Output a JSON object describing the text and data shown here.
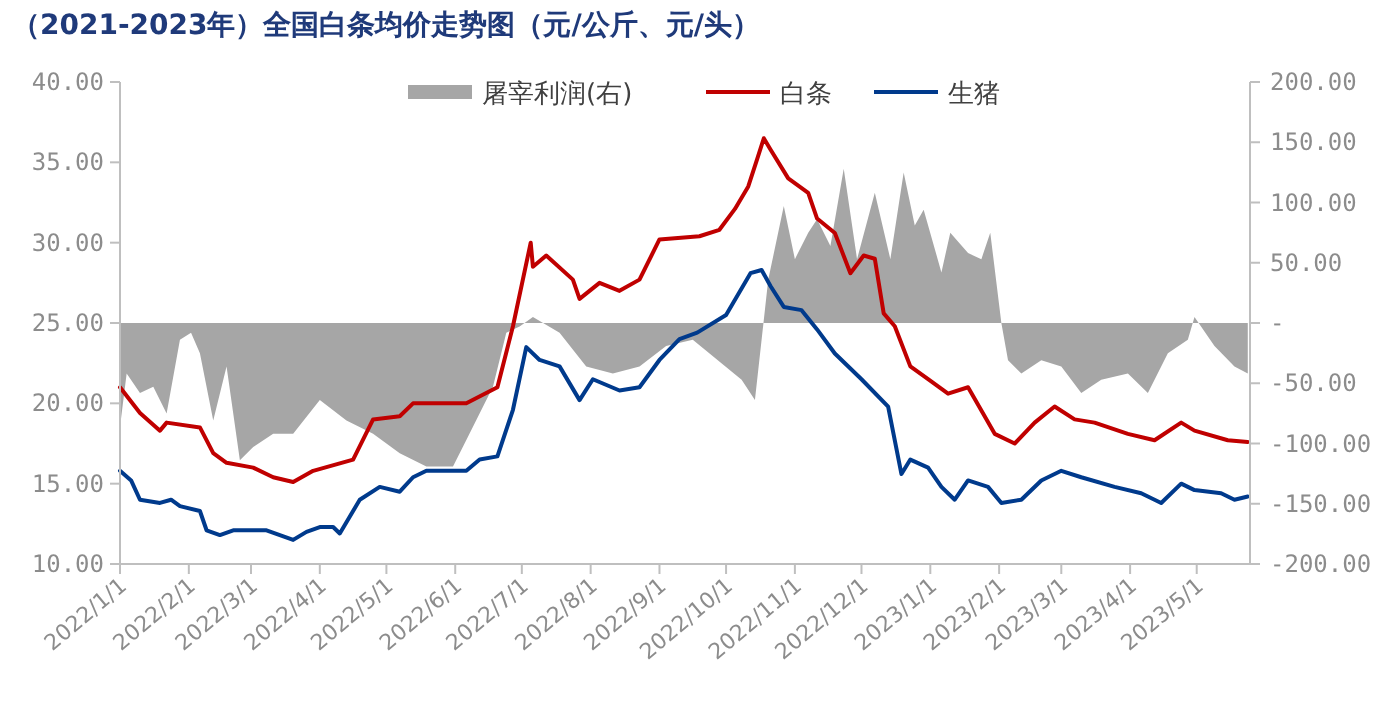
{
  "chart_data": {
    "type": "line",
    "title": "（2021-2023年）全国白条均价走势图（元/公斤、元/头）",
    "legend": "top",
    "grid": false,
    "xlim": [
      "2022-01-01",
      "2023-05-25"
    ],
    "xticks": [
      {
        "value": "2022-01-01",
        "label": "2022/1/1"
      },
      {
        "value": "2022-02-01",
        "label": "2022/2/1"
      },
      {
        "value": "2022-03-01",
        "label": "2022/3/1"
      },
      {
        "value": "2022-04-01",
        "label": "2022/4/1"
      },
      {
        "value": "2022-05-01",
        "label": "2022/5/1"
      },
      {
        "value": "2022-06-01",
        "label": "2022/6/1"
      },
      {
        "value": "2022-07-01",
        "label": "2022/7/1"
      },
      {
        "value": "2022-08-01",
        "label": "2022/8/1"
      },
      {
        "value": "2022-09-01",
        "label": "2022/9/1"
      },
      {
        "value": "2022-10-01",
        "label": "2022/10/1"
      },
      {
        "value": "2022-11-01",
        "label": "2022/11/1"
      },
      {
        "value": "2022-12-01",
        "label": "2022/12/1"
      },
      {
        "value": "2023-01-01",
        "label": "2023/1/1"
      },
      {
        "value": "2023-02-01",
        "label": "2023/2/1"
      },
      {
        "value": "2023-03-01",
        "label": "2023/3/1"
      },
      {
        "value": "2023-04-01",
        "label": "2023/4/1"
      },
      {
        "value": "2023-05-01",
        "label": "2023/5/1"
      }
    ],
    "ylim": [
      10,
      40
    ],
    "yticks": [
      {
        "value": 10,
        "label": "10.00"
      },
      {
        "value": 15,
        "label": "15.00"
      },
      {
        "value": 20,
        "label": "20.00"
      },
      {
        "value": 25,
        "label": "25.00"
      },
      {
        "value": 30,
        "label": "30.00"
      },
      {
        "value": 35,
        "label": "35.00"
      },
      {
        "value": 40,
        "label": "40.00"
      }
    ],
    "y2lim": [
      -200,
      200
    ],
    "y2ticks": [
      {
        "value": -200,
        "label": "-200.00"
      },
      {
        "value": -150,
        "label": "-150.00"
      },
      {
        "value": -100,
        "label": "-100.00"
      },
      {
        "value": -50,
        "label": "-50.00"
      },
      {
        "value": 0,
        "label": "-"
      },
      {
        "value": 50,
        "label": "50.00"
      },
      {
        "value": 100,
        "label": "100.00"
      },
      {
        "value": 150,
        "label": "150.00"
      },
      {
        "value": 200,
        "label": "200.00"
      }
    ],
    "series": [
      {
        "name": "屠宰利润(右)",
        "type": "area",
        "axis": "y2",
        "color": "#a6a6a6",
        "x": [
          "2022-01-01",
          "2022-01-04",
          "2022-01-10",
          "2022-01-16",
          "2022-01-22",
          "2022-01-28",
          "2022-02-02",
          "2022-02-06",
          "2022-02-12",
          "2022-02-18",
          "2022-02-24",
          "2022-03-02",
          "2022-03-11",
          "2022-03-20",
          "2022-04-01",
          "2022-04-13",
          "2022-04-25",
          "2022-05-07",
          "2022-05-19",
          "2022-05-31",
          "2022-06-06",
          "2022-06-18",
          "2022-06-24",
          "2022-06-30",
          "2022-07-06",
          "2022-07-18",
          "2022-07-30",
          "2022-08-11",
          "2022-08-23",
          "2022-09-04",
          "2022-09-16",
          "2022-10-08",
          "2022-10-14",
          "2022-10-20",
          "2022-10-27",
          "2022-11-01",
          "2022-11-07",
          "2022-11-11",
          "2022-11-17",
          "2022-11-23",
          "2022-11-29",
          "2022-12-07",
          "2022-12-14",
          "2022-12-20",
          "2022-12-25",
          "2022-12-29",
          "2023-01-06",
          "2023-01-10",
          "2023-01-18",
          "2023-01-24",
          "2023-01-28",
          "2023-02-02",
          "2023-02-05",
          "2023-02-11",
          "2023-02-20",
          "2023-03-01",
          "2023-03-10",
          "2023-03-19",
          "2023-03-31",
          "2023-04-09",
          "2023-04-18",
          "2023-04-27",
          "2023-04-30",
          "2023-05-09",
          "2023-05-18",
          "2023-05-24"
        ],
        "values": [
          -86,
          -42,
          -58,
          -53,
          -75,
          -14,
          -8,
          -25,
          -81,
          -36,
          -114,
          -103,
          -92,
          -92,
          -64,
          -81,
          -92,
          -108,
          -119,
          -119,
          -97,
          -53,
          -8,
          -3,
          5,
          -8,
          -36,
          -42,
          -36,
          -19,
          -14,
          -47,
          -64,
          36,
          97,
          53,
          75,
          86,
          64,
          128,
          53,
          108,
          53,
          125,
          81,
          94,
          42,
          75,
          58,
          53,
          75,
          0,
          -31,
          -42,
          -31,
          -36,
          -58,
          -47,
          -42,
          -58,
          -25,
          -14,
          5,
          -19,
          -36,
          -42
        ]
      },
      {
        "name": "白条",
        "color": "#c00000",
        "x": [
          "2022-01-01",
          "2022-01-10",
          "2022-01-19",
          "2022-01-22",
          "2022-02-06",
          "2022-02-12",
          "2022-02-18",
          "2022-03-02",
          "2022-03-11",
          "2022-03-20",
          "2022-03-29",
          "2022-04-16",
          "2022-04-25",
          "2022-05-07",
          "2022-05-13",
          "2022-06-06",
          "2022-06-20",
          "2022-06-27",
          "2022-07-05",
          "2022-07-06",
          "2022-07-12",
          "2022-07-24",
          "2022-07-27",
          "2022-08-05",
          "2022-08-14",
          "2022-08-23",
          "2022-09-01",
          "2022-09-19",
          "2022-09-28",
          "2022-10-05",
          "2022-10-11",
          "2022-10-15",
          "2022-10-18",
          "2022-10-21",
          "2022-10-29",
          "2022-11-07",
          "2022-11-11",
          "2022-11-19",
          "2022-11-26",
          "2022-12-02",
          "2022-12-07",
          "2022-12-11",
          "2022-12-16",
          "2022-12-23",
          "2022-12-31",
          "2023-01-09",
          "2023-01-18",
          "2023-01-30",
          "2023-02-08",
          "2023-02-17",
          "2023-02-26",
          "2023-03-07",
          "2023-03-16",
          "2023-03-31",
          "2023-04-12",
          "2023-04-24",
          "2023-04-30",
          "2023-05-15",
          "2023-05-24"
        ],
        "values": [
          21.0,
          19.4,
          18.3,
          18.8,
          18.5,
          16.9,
          16.3,
          16.0,
          15.4,
          15.1,
          15.8,
          16.5,
          19.0,
          19.2,
          20.0,
          20.0,
          21.0,
          24.8,
          30.0,
          28.5,
          29.2,
          27.7,
          26.5,
          27.5,
          27.0,
          27.7,
          30.2,
          30.4,
          30.8,
          32.1,
          33.5,
          35.2,
          36.5,
          35.8,
          34.0,
          33.1,
          31.5,
          30.6,
          28.1,
          29.2,
          29.0,
          25.6,
          24.8,
          22.3,
          21.5,
          20.6,
          21.0,
          18.1,
          17.5,
          18.8,
          19.8,
          19.0,
          18.8,
          18.1,
          17.7,
          18.8,
          18.3,
          17.7,
          17.6
        ]
      },
      {
        "name": "生猪",
        "color": "#003a8c",
        "x": [
          "2022-01-01",
          "2022-01-06",
          "2022-01-10",
          "2022-01-19",
          "2022-01-24",
          "2022-01-28",
          "2022-02-06",
          "2022-02-09",
          "2022-02-15",
          "2022-02-21",
          "2022-03-08",
          "2022-03-20",
          "2022-03-26",
          "2022-04-01",
          "2022-04-07",
          "2022-04-10",
          "2022-04-19",
          "2022-04-28",
          "2022-05-07",
          "2022-05-13",
          "2022-05-19",
          "2022-06-06",
          "2022-06-12",
          "2022-06-20",
          "2022-06-27",
          "2022-07-03",
          "2022-07-09",
          "2022-07-18",
          "2022-07-27",
          "2022-08-02",
          "2022-08-14",
          "2022-08-23",
          "2022-09-01",
          "2022-09-10",
          "2022-09-18",
          "2022-10-01",
          "2022-10-12",
          "2022-10-17",
          "2022-10-21",
          "2022-10-27",
          "2022-11-04",
          "2022-11-11",
          "2022-11-19",
          "2022-12-01",
          "2022-12-13",
          "2022-12-19",
          "2022-12-23",
          "2022-12-31",
          "2023-01-06",
          "2023-01-12",
          "2023-01-18",
          "2023-01-27",
          "2023-02-02",
          "2023-02-11",
          "2023-02-20",
          "2023-03-01",
          "2023-03-10",
          "2023-03-25",
          "2023-04-06",
          "2023-04-15",
          "2023-04-24",
          "2023-04-30",
          "2023-05-12",
          "2023-05-18",
          "2023-05-24"
        ],
        "values": [
          15.8,
          15.2,
          14.0,
          13.8,
          14.0,
          13.6,
          13.3,
          12.1,
          11.8,
          12.1,
          12.1,
          11.5,
          12.0,
          12.3,
          12.3,
          11.9,
          14.0,
          14.8,
          14.5,
          15.4,
          15.8,
          15.8,
          16.5,
          16.7,
          19.6,
          23.5,
          22.7,
          22.3,
          20.2,
          21.5,
          20.8,
          21.0,
          22.7,
          24.0,
          24.4,
          25.5,
          28.1,
          28.3,
          27.3,
          26.0,
          25.8,
          24.6,
          23.1,
          21.5,
          19.8,
          15.6,
          16.5,
          16.0,
          14.8,
          14.0,
          15.2,
          14.8,
          13.8,
          14.0,
          15.2,
          15.8,
          15.4,
          14.8,
          14.4,
          13.8,
          15.0,
          14.6,
          14.4,
          14.0,
          14.2
        ]
      }
    ]
  }
}
